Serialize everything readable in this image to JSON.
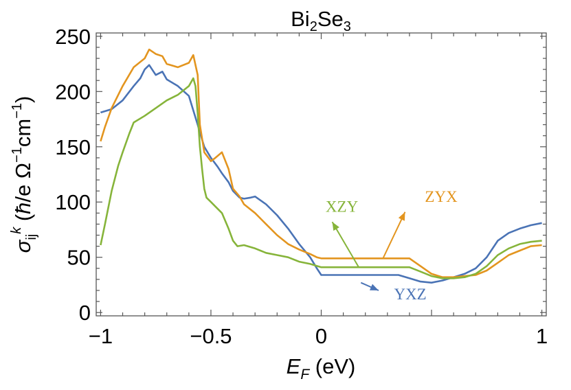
{
  "chart_data": {
    "type": "line",
    "title": "Bi2Se3",
    "title_parts": {
      "base1": "Bi",
      "sub1": "2",
      "base2": "Se",
      "sub2": "3"
    },
    "xlabel": {
      "sym": "E",
      "sub": "F",
      "unit": " (eV)"
    },
    "ylabel": {
      "sym": "σ",
      "sub": "ij",
      "sup": "k",
      "unit_open": " (",
      "hbar": "ħ",
      "mid": "/e Ω",
      "sup1": "−1",
      "cm": "cm",
      "sup2": "−1",
      "unit_close": ")"
    },
    "xlim": [
      -1.02,
      1.02
    ],
    "ylim": [
      -3,
      253
    ],
    "xticks": [
      -1,
      -0.5,
      0,
      1
    ],
    "xtick_labels": [
      "−1",
      "−0.5",
      "0",
      "1"
    ],
    "yticks": [
      0,
      50,
      100,
      150,
      200,
      250
    ],
    "ytick_labels": [
      "0",
      "50",
      "100",
      "150",
      "200",
      "250"
    ],
    "grid": false,
    "legend": "none",
    "series": [
      {
        "name": "YXZ",
        "color": "#4a73b5",
        "x": [
          -1.0,
          -0.95,
          -0.9,
          -0.85,
          -0.82,
          -0.8,
          -0.78,
          -0.75,
          -0.72,
          -0.7,
          -0.65,
          -0.6,
          -0.58,
          -0.56,
          -0.55,
          -0.53,
          -0.5,
          -0.47,
          -0.45,
          -0.42,
          -0.4,
          -0.37,
          -0.35,
          -0.32,
          -0.3,
          -0.25,
          -0.2,
          -0.15,
          -0.1,
          -0.05,
          -0.02,
          0.0,
          0.05,
          0.1,
          0.15,
          0.2,
          0.25,
          0.3,
          0.35,
          0.4,
          0.45,
          0.5,
          0.55,
          0.6,
          0.65,
          0.7,
          0.75,
          0.8,
          0.85,
          0.9,
          0.95,
          1.0
        ],
        "y": [
          181,
          184,
          192,
          205,
          212,
          220,
          224,
          215,
          218,
          211,
          205,
          196,
          183,
          170,
          163,
          150,
          140,
          132,
          126,
          118,
          110,
          104,
          103,
          104,
          105,
          98,
          88,
          76,
          62,
          50,
          40,
          34,
          34,
          34,
          34,
          34,
          34,
          34,
          34,
          31,
          28,
          27,
          29,
          32,
          35,
          40,
          50,
          65,
          72,
          76,
          79,
          81
        ]
      },
      {
        "name": "ZYX",
        "color": "#e3951f",
        "x": [
          -1.0,
          -0.98,
          -0.95,
          -0.9,
          -0.85,
          -0.8,
          -0.78,
          -0.75,
          -0.72,
          -0.7,
          -0.65,
          -0.6,
          -0.58,
          -0.56,
          -0.55,
          -0.53,
          -0.5,
          -0.48,
          -0.45,
          -0.42,
          -0.4,
          -0.37,
          -0.35,
          -0.3,
          -0.25,
          -0.2,
          -0.15,
          -0.1,
          -0.05,
          -0.02,
          0.0,
          0.05,
          0.1,
          0.15,
          0.2,
          0.25,
          0.3,
          0.35,
          0.4,
          0.45,
          0.5,
          0.55,
          0.6,
          0.65,
          0.7,
          0.75,
          0.8,
          0.85,
          0.9,
          0.95,
          1.0
        ],
        "y": [
          155,
          168,
          185,
          205,
          222,
          230,
          238,
          234,
          232,
          225,
          222,
          226,
          233,
          215,
          170,
          145,
          137,
          140,
          145,
          130,
          112,
          105,
          98,
          90,
          80,
          70,
          62,
          57,
          53,
          50,
          49,
          49,
          49,
          49,
          49,
          49,
          49,
          49,
          49,
          42,
          35,
          32,
          32,
          33,
          34,
          38,
          45,
          52,
          56,
          60,
          61
        ]
      },
      {
        "name": "XZY",
        "color": "#86b43a",
        "x": [
          -1.0,
          -0.98,
          -0.95,
          -0.92,
          -0.9,
          -0.87,
          -0.85,
          -0.8,
          -0.75,
          -0.7,
          -0.65,
          -0.6,
          -0.58,
          -0.57,
          -0.56,
          -0.55,
          -0.54,
          -0.53,
          -0.52,
          -0.5,
          -0.48,
          -0.45,
          -0.42,
          -0.4,
          -0.38,
          -0.35,
          -0.3,
          -0.25,
          -0.2,
          -0.15,
          -0.1,
          -0.05,
          0.0,
          0.05,
          0.1,
          0.15,
          0.2,
          0.25,
          0.3,
          0.35,
          0.4,
          0.45,
          0.5,
          0.55,
          0.6,
          0.65,
          0.7,
          0.75,
          0.8,
          0.85,
          0.9,
          0.95,
          1.0
        ],
        "y": [
          61,
          80,
          110,
          133,
          145,
          162,
          172,
          178,
          185,
          192,
          197,
          205,
          212,
          205,
          180,
          150,
          130,
          112,
          104,
          100,
          96,
          90,
          76,
          65,
          60,
          61,
          58,
          54,
          52,
          50,
          46,
          44,
          41,
          41,
          41,
          41,
          41,
          41,
          41,
          41,
          41,
          37,
          33,
          31,
          31,
          32,
          35,
          42,
          52,
          58,
          62,
          64,
          65
        ]
      }
    ],
    "annotations": [
      {
        "text": "YXZ",
        "series": 0,
        "tx": 0.33,
        "ty": 12,
        "arrow_from": [
          0.18,
          27
        ],
        "arrow_to": [
          0.26,
          20
        ]
      },
      {
        "text": "ZYX",
        "series": 1,
        "tx": 0.47,
        "ty": 100,
        "arrow_from": [
          0.28,
          49
        ],
        "arrow_to": [
          0.38,
          91
        ]
      },
      {
        "text": "XZY",
        "series": 2,
        "tx": 0.02,
        "ty": 91,
        "arrow_from": [
          0.17,
          41
        ],
        "arrow_to": [
          0.05,
          82
        ]
      }
    ]
  }
}
